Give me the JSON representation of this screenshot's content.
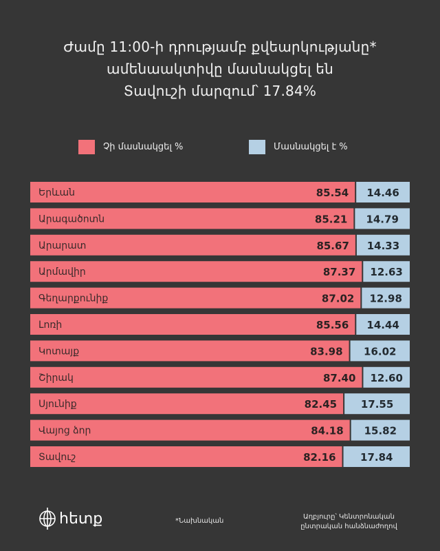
{
  "title": {
    "line1": "Ժամը 11:00-ի դրությամբ քվեարկությանը*",
    "line2": "ամենաակտիվը մասնակցել են",
    "line3": "Տավուշի մարզում՝ 17.84%"
  },
  "colors": {
    "not_participated": "#f2727a",
    "participated": "#b5d0e4",
    "background": "#363636"
  },
  "chart_data": {
    "type": "bar",
    "orientation": "horizontal",
    "stacked": true,
    "categories": [
      "Երևան",
      "Արագածոտն",
      "Արարատ",
      "Արմավիր",
      "Գեղարքունիք",
      "Լոռի",
      "Կոտայք",
      "Շիրակ",
      "Սյունիք",
      "Վայոց ձոր",
      "Տավուշ"
    ],
    "series": [
      {
        "name": "Չի մասնակցել %",
        "values": [
          85.54,
          85.21,
          85.67,
          87.37,
          87.02,
          85.56,
          83.98,
          87.4,
          82.45,
          84.18,
          82.16
        ]
      },
      {
        "name": "Մասնակցել է %",
        "values": [
          14.46,
          14.79,
          14.33,
          12.63,
          12.98,
          14.44,
          16.02,
          12.6,
          17.55,
          15.82,
          17.84
        ]
      }
    ],
    "value_labels": {
      "not_participated": [
        "85.54",
        "85.21",
        "85.67",
        "87.37",
        "87.02",
        "85.56",
        "83.98",
        "87.40",
        "82.45",
        "84.18",
        "82.16"
      ],
      "participated": [
        "14.46",
        "14.79",
        "14.33",
        "12.63",
        "12.98",
        "14.44",
        "16.02",
        "12.60",
        "17.55",
        "15.82",
        "17.84"
      ]
    },
    "xlim": [
      0,
      100
    ],
    "legend_position": "top",
    "grid": false
  },
  "footer": {
    "logo_text": "հետք",
    "note": "*Նախնական",
    "source_line1": "Աղբյուրը՝ Կենտրոնական",
    "source_line2": "ընտրական հանձնաժողով"
  }
}
